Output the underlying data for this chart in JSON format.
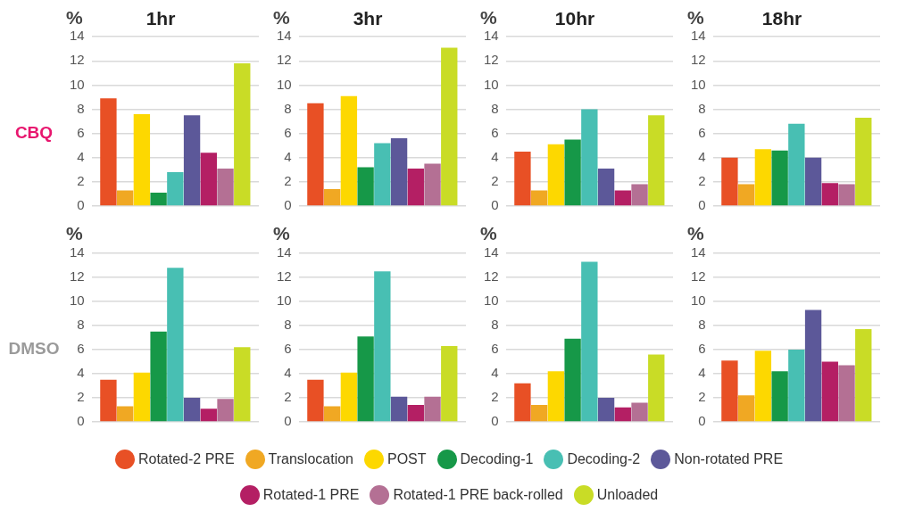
{
  "chart_data": [
    {
      "type": "bar",
      "title": "1hr",
      "ylabel": "%",
      "legend": "bottom",
      "annotations": [
        "CBQ"
      ],
      "categories": [
        null
      ],
      "ylim": [
        0,
        14
      ],
      "yticks": [
        0,
        2,
        4,
        6,
        8,
        10,
        12,
        14
      ],
      "grid": "y",
      "series": [
        {
          "name": "Rotated-2 PRE",
          "color": "#e85025",
          "values": [
            8.9
          ]
        },
        {
          "name": "Translocation",
          "color": "#f0a823",
          "values": [
            1.3
          ]
        },
        {
          "name": "POST",
          "color": "#fdd800",
          "values": [
            7.6
          ]
        },
        {
          "name": "Decoding-1",
          "color": "#169848",
          "values": [
            1.1
          ]
        },
        {
          "name": "Decoding-2",
          "color": "#48bfb3",
          "values": [
            2.8
          ]
        },
        {
          "name": "Non-rotated PRE",
          "color": "#5c5899",
          "values": [
            7.5
          ]
        },
        {
          "name": "Rotated-1 PRE",
          "color": "#b41f64",
          "values": [
            4.4
          ]
        },
        {
          "name": "Rotated-1 PRE back-rolled",
          "color": "#b47094",
          "values": [
            3.1
          ]
        },
        {
          "name": "Unloaded",
          "color": "#c9dc26",
          "values": [
            11.8
          ]
        }
      ]
    },
    {
      "type": "bar",
      "title": "3hr",
      "ylabel": "%",
      "categories": [
        null
      ],
      "ylim": [
        0,
        14
      ],
      "yticks": [
        0,
        2,
        4,
        6,
        8,
        10,
        12,
        14
      ],
      "grid": "y",
      "series": [
        {
          "color": "#e85025",
          "values": [
            8.5
          ]
        },
        {
          "color": "#f0a823",
          "values": [
            1.4
          ]
        },
        {
          "color": "#fdd800",
          "values": [
            9.1
          ]
        },
        {
          "color": "#169848",
          "values": [
            3.2
          ]
        },
        {
          "color": "#48bfb3",
          "values": [
            5.2
          ]
        },
        {
          "color": "#5c5899",
          "values": [
            5.6
          ]
        },
        {
          "color": "#b41f64",
          "values": [
            3.1
          ]
        },
        {
          "color": "#b47094",
          "values": [
            3.5
          ]
        },
        {
          "color": "#c9dc26",
          "values": [
            13.1
          ]
        }
      ]
    },
    {
      "type": "bar",
      "title": "10hr",
      "ylabel": "%",
      "categories": [
        null
      ],
      "ylim": [
        0,
        14
      ],
      "yticks": [
        0,
        2,
        4,
        6,
        8,
        10,
        12,
        14
      ],
      "grid": "y",
      "series": [
        {
          "color": "#e85025",
          "values": [
            4.5
          ]
        },
        {
          "color": "#f0a823",
          "values": [
            1.3
          ]
        },
        {
          "color": "#fdd800",
          "values": [
            5.1
          ]
        },
        {
          "color": "#169848",
          "values": [
            5.5
          ]
        },
        {
          "color": "#48bfb3",
          "values": [
            8.0
          ]
        },
        {
          "color": "#5c5899",
          "values": [
            3.1
          ]
        },
        {
          "color": "#b41f64",
          "values": [
            1.3
          ]
        },
        {
          "color": "#b47094",
          "values": [
            1.8
          ]
        },
        {
          "color": "#c9dc26",
          "values": [
            7.5
          ]
        }
      ]
    },
    {
      "type": "bar",
      "title": "18hr",
      "ylabel": "%",
      "categories": [
        null
      ],
      "ylim": [
        0,
        14
      ],
      "yticks": [
        0,
        2,
        4,
        6,
        8,
        10,
        12,
        14
      ],
      "grid": "y",
      "series": [
        {
          "color": "#e85025",
          "values": [
            4.0
          ]
        },
        {
          "color": "#f0a823",
          "values": [
            1.8
          ]
        },
        {
          "color": "#fdd800",
          "values": [
            4.7
          ]
        },
        {
          "color": "#169848",
          "values": [
            4.6
          ]
        },
        {
          "color": "#48bfb3",
          "values": [
            6.8
          ]
        },
        {
          "color": "#5c5899",
          "values": [
            4.0
          ]
        },
        {
          "color": "#b41f64",
          "values": [
            1.9
          ]
        },
        {
          "color": "#b47094",
          "values": [
            1.8
          ]
        },
        {
          "color": "#c9dc26",
          "values": [
            7.3
          ]
        }
      ]
    },
    {
      "type": "bar",
      "ylabel": "%",
      "annotations": [
        "DMSO"
      ],
      "categories": [
        null
      ],
      "ylim": [
        0,
        14
      ],
      "yticks": [
        0,
        2,
        4,
        6,
        8,
        10,
        12,
        14
      ],
      "grid": "y",
      "series": [
        {
          "color": "#e85025",
          "values": [
            3.5
          ]
        },
        {
          "color": "#f0a823",
          "values": [
            1.3
          ]
        },
        {
          "color": "#fdd800",
          "values": [
            4.1
          ]
        },
        {
          "color": "#169848",
          "values": [
            7.5
          ]
        },
        {
          "color": "#48bfb3",
          "values": [
            12.8
          ]
        },
        {
          "color": "#5c5899",
          "values": [
            2.0
          ]
        },
        {
          "color": "#b41f64",
          "values": [
            1.1
          ]
        },
        {
          "color": "#b47094",
          "values": [
            1.9
          ]
        },
        {
          "color": "#c9dc26",
          "values": [
            6.2
          ]
        }
      ]
    },
    {
      "type": "bar",
      "ylabel": "%",
      "categories": [
        null
      ],
      "ylim": [
        0,
        14
      ],
      "yticks": [
        0,
        2,
        4,
        6,
        8,
        10,
        12,
        14
      ],
      "grid": "y",
      "series": [
        {
          "color": "#e85025",
          "values": [
            3.5
          ]
        },
        {
          "color": "#f0a823",
          "values": [
            1.3
          ]
        },
        {
          "color": "#fdd800",
          "values": [
            4.1
          ]
        },
        {
          "color": "#169848",
          "values": [
            7.1
          ]
        },
        {
          "color": "#48bfb3",
          "values": [
            12.5
          ]
        },
        {
          "color": "#5c5899",
          "values": [
            2.1
          ]
        },
        {
          "color": "#b41f64",
          "values": [
            1.4
          ]
        },
        {
          "color": "#b47094",
          "values": [
            2.1
          ]
        },
        {
          "color": "#c9dc26",
          "values": [
            6.3
          ]
        }
      ]
    },
    {
      "type": "bar",
      "ylabel": "%",
      "categories": [
        null
      ],
      "ylim": [
        0,
        14
      ],
      "yticks": [
        0,
        2,
        4,
        6,
        8,
        10,
        12,
        14
      ],
      "grid": "y",
      "series": [
        {
          "color": "#e85025",
          "values": [
            3.2
          ]
        },
        {
          "color": "#f0a823",
          "values": [
            1.4
          ]
        },
        {
          "color": "#fdd800",
          "values": [
            4.2
          ]
        },
        {
          "color": "#169848",
          "values": [
            6.9
          ]
        },
        {
          "color": "#48bfb3",
          "values": [
            13.3
          ]
        },
        {
          "color": "#5c5899",
          "values": [
            2.0
          ]
        },
        {
          "color": "#b41f64",
          "values": [
            1.2
          ]
        },
        {
          "color": "#b47094",
          "values": [
            1.6
          ]
        },
        {
          "color": "#c9dc26",
          "values": [
            5.6
          ]
        }
      ]
    },
    {
      "type": "bar",
      "ylabel": "%",
      "categories": [
        null
      ],
      "ylim": [
        0,
        14
      ],
      "yticks": [
        0,
        2,
        4,
        6,
        8,
        10,
        12,
        14
      ],
      "grid": "y",
      "series": [
        {
          "color": "#e85025",
          "values": [
            5.1
          ]
        },
        {
          "color": "#f0a823",
          "values": [
            2.2
          ]
        },
        {
          "color": "#fdd800",
          "values": [
            5.9
          ]
        },
        {
          "color": "#169848",
          "values": [
            4.2
          ]
        },
        {
          "color": "#48bfb3",
          "values": [
            6.0
          ]
        },
        {
          "color": "#5c5899",
          "values": [
            9.3
          ]
        },
        {
          "color": "#b41f64",
          "values": [
            5.0
          ]
        },
        {
          "color": "#b47094",
          "values": [
            4.7
          ]
        },
        {
          "color": "#c9dc26",
          "values": [
            7.7
          ]
        }
      ]
    }
  ]
}
